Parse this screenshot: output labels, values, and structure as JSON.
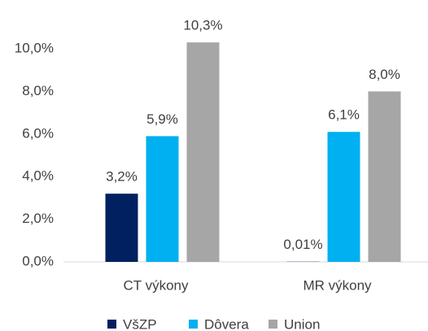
{
  "chart_data": {
    "type": "bar",
    "categories": [
      "CT výkony",
      "MR výkony"
    ],
    "series": [
      {
        "name": "VšZP",
        "color": "#002060",
        "values": [
          3.2,
          0.01
        ],
        "value_labels": [
          "3,2%",
          "0,01%"
        ]
      },
      {
        "name": "Dôvera",
        "color": "#00b0f0",
        "values": [
          5.9,
          6.1
        ],
        "value_labels": [
          "5,9%",
          "6,1%"
        ]
      },
      {
        "name": "Union",
        "color": "#a6a6a6",
        "values": [
          10.3,
          8.0
        ],
        "value_labels": [
          "10,3%",
          "8,0%"
        ]
      }
    ],
    "ylim": [
      0,
      12
    ],
    "yticks": [
      {
        "value": 0,
        "label": "0,0%"
      },
      {
        "value": 2,
        "label": "2,0%"
      },
      {
        "value": 4,
        "label": "4,0%"
      },
      {
        "value": 6,
        "label": "6,0%"
      },
      {
        "value": 8,
        "label": "8,0%"
      },
      {
        "value": 10,
        "label": "10,0%"
      }
    ],
    "grid": false,
    "legend": "bottom"
  }
}
